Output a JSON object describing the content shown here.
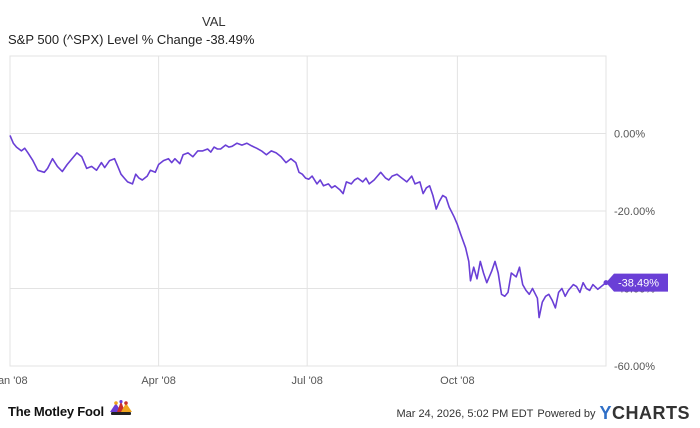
{
  "legend": {
    "header": "VAL",
    "series_name": "S&P 500 (^SPX) Level % Change",
    "series_value": "-38.49%"
  },
  "footer": {
    "brand": "The Motley Fool",
    "timestamp": "Mar 24, 2026, 5:02 PM EDT",
    "powered_by": "Powered by",
    "provider": "CHARTS",
    "provider_mark": "Y"
  },
  "colors": {
    "line": "#6a3fd6",
    "grid": "#e3e3e3",
    "axis_text": "#555555"
  },
  "chart_data": {
    "type": "line",
    "title": "",
    "xlabel": "",
    "ylabel": "",
    "x_ticks": [
      "Jan '08",
      "Apr '08",
      "Jul '08",
      "Oct '08"
    ],
    "y_ticks": [
      "0.00%",
      "-20.00%",
      "-40.00%",
      "-60.00%"
    ],
    "y_tick_values": [
      0,
      -20,
      -40,
      -60
    ],
    "ylim": [
      -60,
      20
    ],
    "xlim": [
      "2008-01-01",
      "2008-12-31"
    ],
    "grid": true,
    "end_label": "-38.49%",
    "series": [
      {
        "values": [
          [
            "2008-01-01",
            -0.5
          ],
          [
            "2008-01-03",
            -2.5
          ],
          [
            "2008-01-05",
            -3.5
          ],
          [
            "2008-01-08",
            -4.5
          ],
          [
            "2008-01-10",
            -3.8
          ],
          [
            "2008-01-12",
            -5.0
          ],
          [
            "2008-01-15",
            -7.0
          ],
          [
            "2008-01-18",
            -9.5
          ],
          [
            "2008-01-22",
            -10.0
          ],
          [
            "2008-01-24",
            -9.0
          ],
          [
            "2008-01-27",
            -6.5
          ],
          [
            "2008-01-30",
            -8.5
          ],
          [
            "2008-02-02",
            -9.8
          ],
          [
            "2008-02-05",
            -8.0
          ],
          [
            "2008-02-08",
            -6.5
          ],
          [
            "2008-02-11",
            -5.0
          ],
          [
            "2008-02-14",
            -6.0
          ],
          [
            "2008-02-17",
            -9.0
          ],
          [
            "2008-02-20",
            -8.5
          ],
          [
            "2008-02-23",
            -9.5
          ],
          [
            "2008-02-26",
            -7.5
          ],
          [
            "2008-02-28",
            -8.8
          ],
          [
            "2008-03-02",
            -7.0
          ],
          [
            "2008-03-05",
            -6.5
          ],
          [
            "2008-03-07",
            -8.5
          ],
          [
            "2008-03-09",
            -10.5
          ],
          [
            "2008-03-11",
            -11.5
          ],
          [
            "2008-03-13",
            -12.5
          ],
          [
            "2008-03-16",
            -13.0
          ],
          [
            "2008-03-18",
            -10.5
          ],
          [
            "2008-03-20",
            -11.5
          ],
          [
            "2008-03-22",
            -12.0
          ],
          [
            "2008-03-25",
            -11.0
          ],
          [
            "2008-03-27",
            -9.5
          ],
          [
            "2008-03-30",
            -10.0
          ],
          [
            "2008-04-01",
            -8.0
          ],
          [
            "2008-04-04",
            -7.0
          ],
          [
            "2008-04-07",
            -6.5
          ],
          [
            "2008-04-09",
            -7.5
          ],
          [
            "2008-04-11",
            -6.5
          ],
          [
            "2008-04-14",
            -7.8
          ],
          [
            "2008-04-16",
            -5.5
          ],
          [
            "2008-04-19",
            -5.0
          ],
          [
            "2008-04-22",
            -6.0
          ],
          [
            "2008-04-25",
            -4.5
          ],
          [
            "2008-04-28",
            -4.5
          ],
          [
            "2008-05-01",
            -4.0
          ],
          [
            "2008-05-03",
            -4.8
          ],
          [
            "2008-05-05",
            -3.5
          ],
          [
            "2008-05-07",
            -4.0
          ],
          [
            "2008-05-09",
            -4.0
          ],
          [
            "2008-05-12",
            -3.0
          ],
          [
            "2008-05-14",
            -3.5
          ],
          [
            "2008-05-16",
            -3.3
          ],
          [
            "2008-05-19",
            -2.5
          ],
          [
            "2008-05-22",
            -3.0
          ],
          [
            "2008-05-25",
            -2.5
          ],
          [
            "2008-05-28",
            -3.2
          ],
          [
            "2008-05-31",
            -3.8
          ],
          [
            "2008-06-03",
            -4.5
          ],
          [
            "2008-06-06",
            -5.5
          ],
          [
            "2008-06-09",
            -4.5
          ],
          [
            "2008-06-12",
            -5.0
          ],
          [
            "2008-06-15",
            -6.0
          ],
          [
            "2008-06-18",
            -7.5
          ],
          [
            "2008-06-21",
            -6.5
          ],
          [
            "2008-06-24",
            -7.5
          ],
          [
            "2008-06-26",
            -10.0
          ],
          [
            "2008-06-28",
            -10.5
          ],
          [
            "2008-06-30",
            -11.5
          ],
          [
            "2008-07-02",
            -11.8
          ],
          [
            "2008-07-04",
            -11.0
          ],
          [
            "2008-07-07",
            -13.0
          ],
          [
            "2008-07-09",
            -12.0
          ],
          [
            "2008-07-11",
            -13.5
          ],
          [
            "2008-07-14",
            -13.0
          ],
          [
            "2008-07-16",
            -14.0
          ],
          [
            "2008-07-18",
            -13.5
          ],
          [
            "2008-07-21",
            -14.5
          ],
          [
            "2008-07-23",
            -15.5
          ],
          [
            "2008-07-25",
            -12.5
          ],
          [
            "2008-07-28",
            -13.0
          ],
          [
            "2008-07-30",
            -12.0
          ],
          [
            "2008-08-01",
            -11.5
          ],
          [
            "2008-08-04",
            -12.5
          ],
          [
            "2008-08-06",
            -11.5
          ],
          [
            "2008-08-08",
            -13.0
          ],
          [
            "2008-08-11",
            -12.0
          ],
          [
            "2008-08-13",
            -11.0
          ],
          [
            "2008-08-15",
            -10.0
          ],
          [
            "2008-08-18",
            -11.5
          ],
          [
            "2008-08-20",
            -12.0
          ],
          [
            "2008-08-22",
            -11.0
          ],
          [
            "2008-08-25",
            -10.5
          ],
          [
            "2008-08-28",
            -11.5
          ],
          [
            "2008-08-31",
            -12.5
          ],
          [
            "2008-09-03",
            -11.0
          ],
          [
            "2008-09-05",
            -13.0
          ],
          [
            "2008-09-08",
            -12.5
          ],
          [
            "2008-09-10",
            -15.5
          ],
          [
            "2008-09-12",
            -14.0
          ],
          [
            "2008-09-14",
            -13.5
          ],
          [
            "2008-09-16",
            -16.0
          ],
          [
            "2008-09-18",
            -19.5
          ],
          [
            "2008-09-20",
            -17.5
          ],
          [
            "2008-09-22",
            -16.0
          ],
          [
            "2008-09-24",
            -16.5
          ],
          [
            "2008-09-26",
            -19.0
          ],
          [
            "2008-09-29",
            -21.5
          ],
          [
            "2008-10-01",
            -23.5
          ],
          [
            "2008-10-03",
            -26.0
          ],
          [
            "2008-10-06",
            -29.5
          ],
          [
            "2008-10-08",
            -33.0
          ],
          [
            "2008-10-09",
            -38.0
          ],
          [
            "2008-10-11",
            -34.5
          ],
          [
            "2008-10-13",
            -37.5
          ],
          [
            "2008-10-15",
            -33.0
          ],
          [
            "2008-10-17",
            -36.0
          ],
          [
            "2008-10-19",
            -38.5
          ],
          [
            "2008-10-22",
            -35.5
          ],
          [
            "2008-10-24",
            -33.0
          ],
          [
            "2008-10-26",
            -36.0
          ],
          [
            "2008-10-28",
            -41.5
          ],
          [
            "2008-10-30",
            -42.0
          ],
          [
            "2008-11-01",
            -41.0
          ],
          [
            "2008-11-03",
            -36.0
          ],
          [
            "2008-11-06",
            -37.0
          ],
          [
            "2008-11-08",
            -34.5
          ],
          [
            "2008-11-10",
            -39.0
          ],
          [
            "2008-11-12",
            -40.5
          ],
          [
            "2008-11-14",
            -41.5
          ],
          [
            "2008-11-16",
            -40.0
          ],
          [
            "2008-11-19",
            -42.5
          ],
          [
            "2008-11-20",
            -47.5
          ],
          [
            "2008-11-22",
            -43.5
          ],
          [
            "2008-11-24",
            -42.0
          ],
          [
            "2008-11-26",
            -41.5
          ],
          [
            "2008-11-28",
            -43.0
          ],
          [
            "2008-11-30",
            -45.0
          ],
          [
            "2008-12-02",
            -41.0
          ],
          [
            "2008-12-04",
            -40.0
          ],
          [
            "2008-12-06",
            -42.0
          ],
          [
            "2008-12-08",
            -40.5
          ],
          [
            "2008-12-11",
            -39.0
          ],
          [
            "2008-12-13",
            -39.5
          ],
          [
            "2008-12-15",
            -41.0
          ],
          [
            "2008-12-17",
            -38.5
          ],
          [
            "2008-12-19",
            -40.0
          ],
          [
            "2008-12-21",
            -40.5
          ],
          [
            "2008-12-23",
            -39.0
          ],
          [
            "2008-12-26",
            -40.2
          ],
          [
            "2008-12-28",
            -39.5
          ],
          [
            "2008-12-31",
            -38.49
          ]
        ]
      }
    ]
  }
}
